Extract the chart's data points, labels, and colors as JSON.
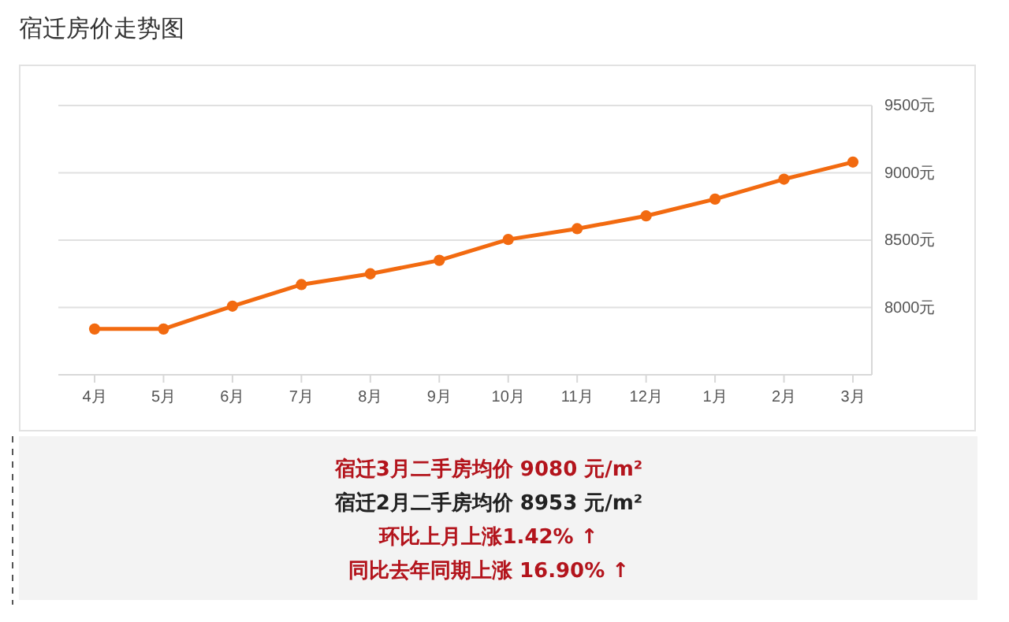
{
  "chart_data": {
    "type": "line",
    "title": "宿迁房价走势图",
    "categories": [
      "4月",
      "5月",
      "6月",
      "7月",
      "8月",
      "9月",
      "10月",
      "11月",
      "12月",
      "1月",
      "2月",
      "3月"
    ],
    "series": [
      {
        "color": "#f26a10",
        "values": [
          7840,
          7840,
          8010,
          8170,
          8250,
          8350,
          8505,
          8585,
          8680,
          8805,
          8953,
          9080
        ]
      }
    ],
    "ylim": [
      7500,
      9500
    ],
    "yticks": [
      {
        "value": 8000,
        "label": "8000元"
      },
      {
        "value": 8500,
        "label": "8500元"
      },
      {
        "value": 9000,
        "label": "9000元"
      },
      {
        "value": 9500,
        "label": "9500元"
      }
    ],
    "grid": "y",
    "marker": "circle",
    "line_style": "solid",
    "annotations": [
      "宿迁3月二手房均价 9080 元/m²",
      "宿迁2月二手房均价 8953 元/m²",
      "环比上月上涨1.42% ↑",
      "同比去年同期上涨 16.90% ↑"
    ]
  }
}
